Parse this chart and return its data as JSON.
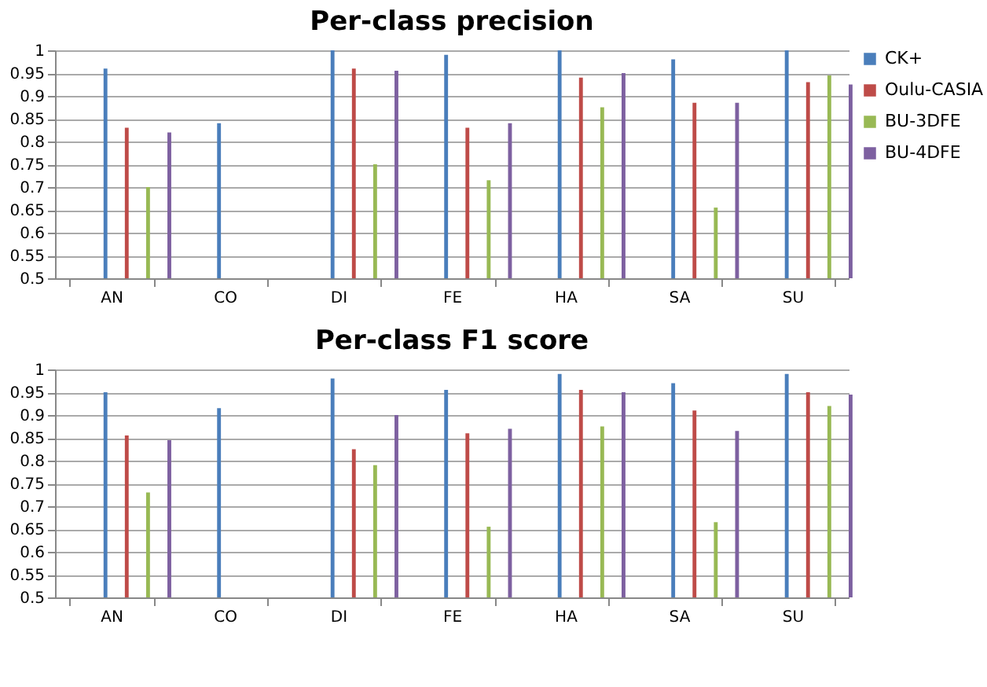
{
  "chart_data": [
    {
      "type": "bar",
      "title": "Per-class precision",
      "categories": [
        "AN",
        "CO",
        "DI",
        "FE",
        "HA",
        "SA",
        "SU"
      ],
      "series": [
        {
          "name": "CK+",
          "color": "#4a7ebb",
          "values": [
            0.96,
            0.84,
            1.0,
            0.99,
            1.0,
            0.98,
            1.0
          ]
        },
        {
          "name": "Oulu-CASIA",
          "color": "#be4b48",
          "values": [
            0.83,
            null,
            0.96,
            0.83,
            0.94,
            0.885,
            0.93
          ]
        },
        {
          "name": "BU-3DFE",
          "color": "#98b954",
          "values": [
            0.7,
            null,
            0.75,
            0.715,
            0.875,
            0.655,
            0.945
          ]
        },
        {
          "name": "BU-4DFE",
          "color": "#7d60a0",
          "values": [
            0.82,
            null,
            0.955,
            0.84,
            0.95,
            0.885,
            0.925
          ]
        }
      ],
      "ylim": [
        0.5,
        1
      ],
      "yticks": [
        0.5,
        0.55,
        0.6,
        0.65,
        0.7,
        0.75,
        0.8,
        0.85,
        0.9,
        0.95,
        1
      ],
      "grid": "y",
      "legend": "right"
    },
    {
      "type": "bar",
      "title": "Per-class F1 score",
      "categories": [
        "AN",
        "CO",
        "DI",
        "FE",
        "HA",
        "SA",
        "SU"
      ],
      "series": [
        {
          "color": "#4a7ebb",
          "values": [
            0.95,
            0.915,
            0.98,
            0.955,
            0.99,
            0.97,
            0.99
          ]
        },
        {
          "color": "#be4b48",
          "values": [
            0.855,
            null,
            0.825,
            0.86,
            0.955,
            0.91,
            0.95
          ]
        },
        {
          "color": "#98b954",
          "values": [
            0.73,
            null,
            0.79,
            0.655,
            0.875,
            0.665,
            0.92
          ]
        },
        {
          "color": "#7d60a0",
          "values": [
            0.845,
            null,
            0.9,
            0.87,
            0.95,
            0.865,
            0.945
          ]
        }
      ],
      "ylim": [
        0.5,
        1
      ],
      "yticks": [
        0.5,
        0.55,
        0.6,
        0.65,
        0.7,
        0.75,
        0.8,
        0.85,
        0.9,
        0.95,
        1
      ],
      "grid": "y",
      "legend": false
    }
  ]
}
